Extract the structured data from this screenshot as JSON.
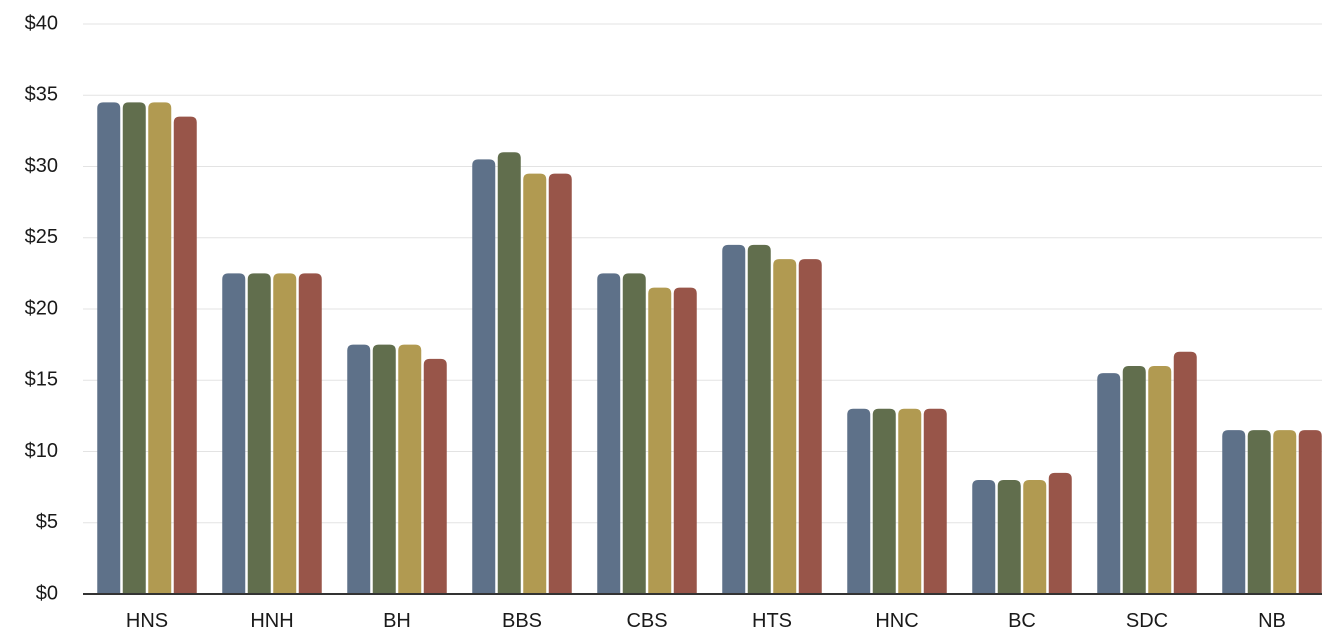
{
  "chart_data": {
    "type": "bar",
    "title": "",
    "xlabel": "",
    "ylabel": "",
    "ylim": [
      0,
      40
    ],
    "y_ticks": [
      0,
      5,
      10,
      15,
      20,
      25,
      30,
      35,
      40
    ],
    "y_tick_labels": [
      "$0",
      "$5",
      "$10",
      "$15",
      "$20",
      "$25",
      "$30",
      "$35",
      "$40"
    ],
    "grid": true,
    "legend": "none",
    "categories": [
      "HNS",
      "HNH",
      "BH",
      "BBS",
      "CBS",
      "HTS",
      "HNC",
      "BC",
      "SDC",
      "NB"
    ],
    "series": [
      {
        "color": "#5e7189",
        "values": [
          34.5,
          22.5,
          17.5,
          30.5,
          22.5,
          24.5,
          13,
          8,
          15.5,
          11.5
        ]
      },
      {
        "color": "#616e4d",
        "values": [
          34.5,
          22.5,
          17.5,
          31,
          22.5,
          24.5,
          13,
          8,
          16,
          11.5
        ]
      },
      {
        "color": "#b19a51",
        "values": [
          34.5,
          22.5,
          17.5,
          29.5,
          21.5,
          23.5,
          13,
          8,
          16,
          11.5
        ]
      },
      {
        "color": "#985549",
        "values": [
          33.5,
          22.5,
          16.5,
          29.5,
          21.5,
          23.5,
          13,
          8.5,
          17,
          11.5
        ]
      }
    ]
  }
}
